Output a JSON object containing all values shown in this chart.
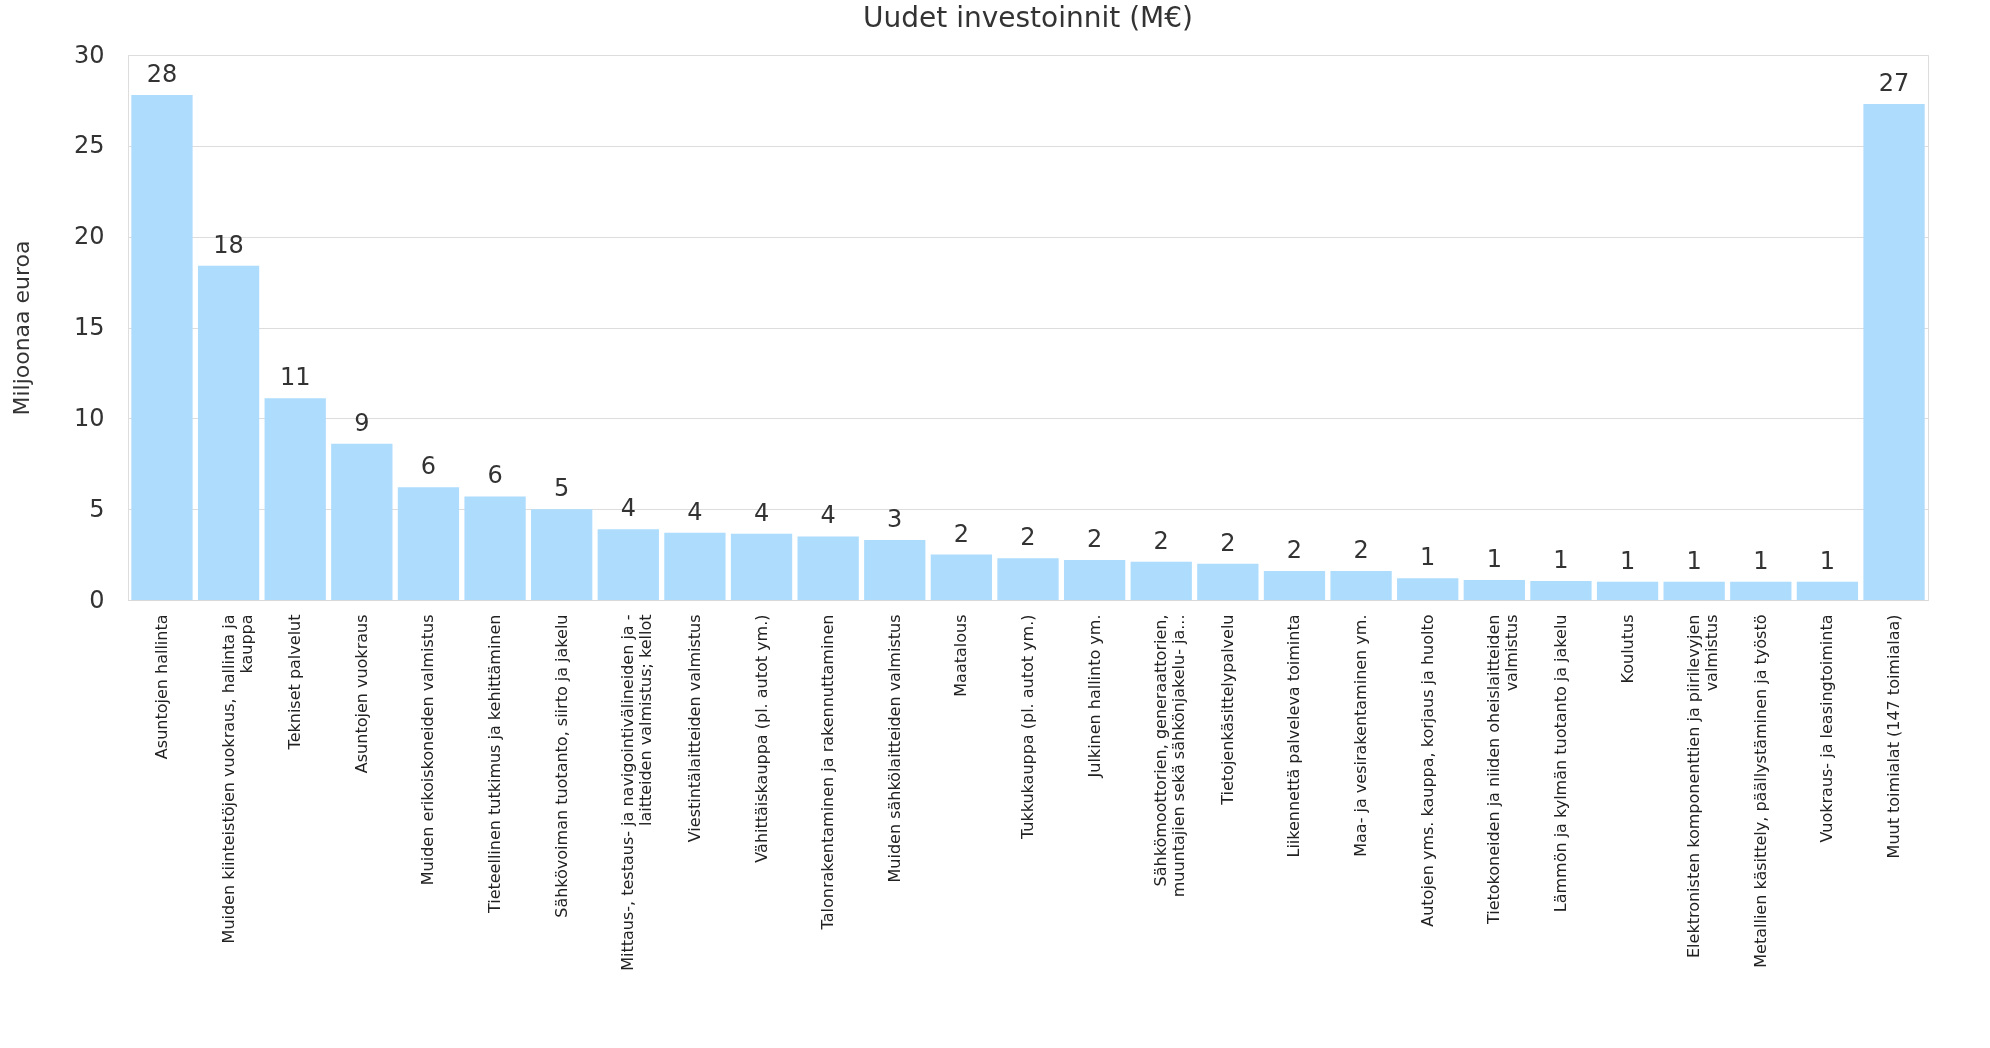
{
  "chart_data": {
    "type": "bar",
    "title": "Uudet investoinnit (M€)",
    "ylabel": "Miljoonaa euroa",
    "categories": [
      "Asuntojen hallinta",
      "Muiden kiinteistöjen vuokraus, hallinta ja\nkauppa",
      "Tekniset palvelut",
      "Asuntojen vuokraus",
      "Muiden erikoiskoneiden valmistus",
      "Tieteellinen tutkimus ja kehittäminen",
      "Sähkövoiman tuotanto, siirto ja jakelu",
      "Mittaus-, testaus- ja navigointivälineiden ja -\nlaitteiden valmistus; kellot",
      "Viestintälaitteiden valmistus",
      "Vähittäiskauppa (pl. autot ym.)",
      "Talonrakentaminen ja rakennuttaminen",
      "Muiden sähkölaitteiden valmistus",
      "Maatalous",
      "Tukkukauppa (pl. autot ym.)",
      "Julkinen hallinto ym.",
      "Sähkömoottorien, generaattorien,\nmuuntajien sekä sähkönjakelu- ja...",
      "Tietojenkäsittelypalvelu",
      "Liikennettä palveleva toiminta",
      "Maa- ja vesirakentaminen ym.",
      "Autojen yms. kauppa, korjaus ja huolto",
      "Tietokoneiden ja niiden oheislaitteiden\nvalmistus",
      "Lämmön ja kylmän tuotanto ja jakelu",
      "Koulutus",
      "Elektronisten komponenttien ja piirilevyjen\nvalmistus",
      "Metallien käsittely, päällystäminen ja työstö",
      "Vuokraus- ja leasingtoiminta",
      "Muut toimialat (147 toimialaa)"
    ],
    "values": [
      27.8,
      18.4,
      11.1,
      8.6,
      6.2,
      5.7,
      5.0,
      3.9,
      3.7,
      3.65,
      3.5,
      3.3,
      2.5,
      2.3,
      2.2,
      2.1,
      2.0,
      1.6,
      1.6,
      1.2,
      1.1,
      1.05,
      1.0,
      1.0,
      1.0,
      1.0,
      27.3
    ],
    "value_labels": [
      "28",
      "18",
      "11",
      "9",
      "6",
      "6",
      "5",
      "4",
      "4",
      "4",
      "4",
      "3",
      "2",
      "2",
      "2",
      "2",
      "2",
      "2",
      "2",
      "1",
      "1",
      "1",
      "1",
      "1",
      "1",
      "1",
      "27"
    ],
    "color": "#addcfd",
    "ylim": [
      0,
      30
    ],
    "yticks": [
      0,
      5,
      10,
      15,
      20,
      25,
      30
    ],
    "grid": "y"
  }
}
